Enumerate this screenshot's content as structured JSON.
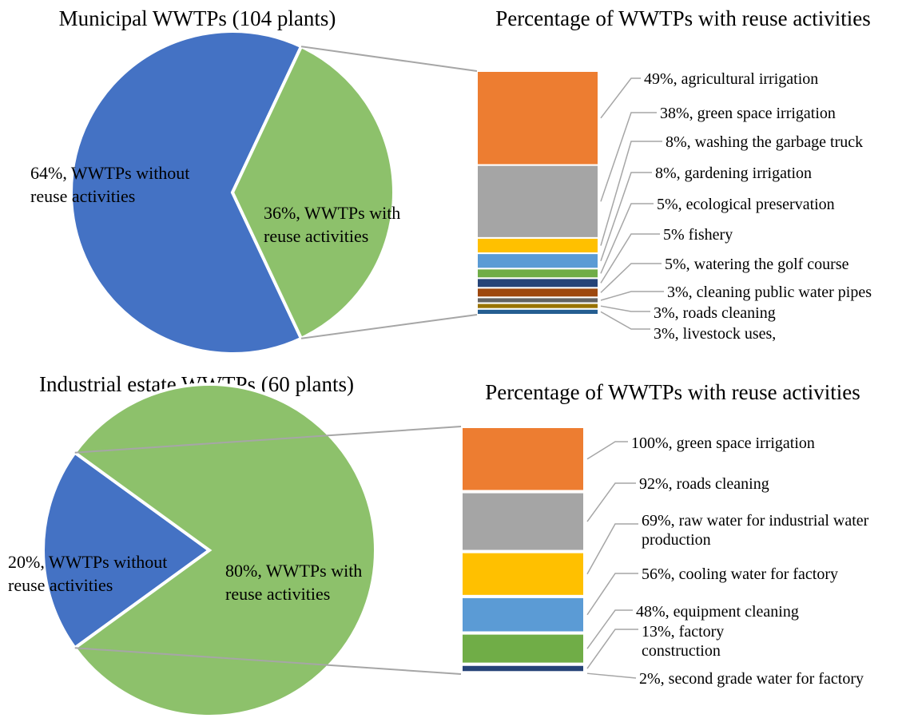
{
  "colors": {
    "without": "#4472C4",
    "with": "#8DC16B",
    "connector": "#A6A6A6",
    "leader": "#A6A6A6"
  },
  "chart_data": [
    {
      "type": "pie",
      "title": "Municipal WWTPs (104 plants)",
      "slices": [
        {
          "label": "64%, WWTPs without reuse activities",
          "value": 64,
          "color": "#4472C4",
          "lines": [
            "64%, WWTPs without",
            "reuse activities"
          ]
        },
        {
          "label": "36%, WWTPs with reuse activities",
          "value": 36,
          "color": "#8DC16B",
          "lines": [
            "36%, WWTPs with",
            "reuse activities"
          ]
        }
      ]
    },
    {
      "type": "bar",
      "title": "Percentage of WWTPs with reuse activities",
      "stacked": true,
      "categories": [
        "agricultural irrigation",
        "green space irrigation",
        "washing the garbage truck",
        "gardening irrigation",
        "ecological preservation",
        "fishery",
        "watering the golf course",
        "cleaning public water pipes",
        "roads cleaning",
        "livestock uses"
      ],
      "values": [
        49,
        38,
        8,
        8,
        5,
        5,
        5,
        3,
        3,
        3
      ],
      "colors": [
        "#ED7D31",
        "#A5A5A5",
        "#FFC000",
        "#5B9BD5",
        "#70AD47",
        "#264478",
        "#9E480E",
        "#636363",
        "#997300",
        "#255E91"
      ],
      "labels": [
        "49%, agricultural irrigation",
        "38%, green space irrigation",
        "8%, washing the garbage truck",
        "8%, gardening irrigation",
        "5%, ecological preservation",
        "5% fishery",
        "5%, watering the golf course",
        "3%, cleaning public water pipes",
        "3%, roads cleaning",
        "3%, livestock uses,"
      ]
    },
    {
      "type": "pie",
      "title": "Industrial estate WWTPs (60 plants)",
      "slices": [
        {
          "label": "20%, WWTPs without reuse activities",
          "value": 20,
          "color": "#4472C4",
          "lines": [
            "20%, WWTPs without",
            "reuse activities"
          ]
        },
        {
          "label": "80%, WWTPs with reuse activities",
          "value": 80,
          "color": "#8DC16B",
          "lines": [
            "80%, WWTPs with",
            "reuse activities"
          ]
        }
      ]
    },
    {
      "type": "bar",
      "title": "Percentage of WWTPs with reuse activities",
      "stacked": true,
      "categories": [
        "green space irrigation",
        "roads cleaning",
        "raw water for industrial water production",
        "cooling water for factory",
        "equipment cleaning",
        "factory construction",
        "second grade water for factory"
      ],
      "values": [
        100,
        92,
        69,
        56,
        48,
        13,
        2
      ],
      "colors": [
        "#ED7D31",
        "#A5A5A5",
        "#FFC000",
        "#5B9BD5",
        "#70AD47",
        "#264478",
        "#264478"
      ],
      "labels": [
        "100%, green space irrigation",
        "92%, roads cleaning",
        "69%, raw water for industrial water production",
        "56%, cooling water for factory",
        "48%, equipment cleaning",
        "13%, factory construction",
        "2%, second grade water for factory"
      ],
      "label_lines": [
        [
          "100%, green space irrigation"
        ],
        [
          "92%, roads cleaning"
        ],
        [
          "69%, raw water for industrial water",
          "production"
        ],
        [
          "56%, cooling water for factory"
        ],
        [
          "48%, equipment cleaning"
        ],
        [
          "13%, factory",
          "construction"
        ],
        [
          "2%, second grade water for factory"
        ]
      ]
    }
  ]
}
